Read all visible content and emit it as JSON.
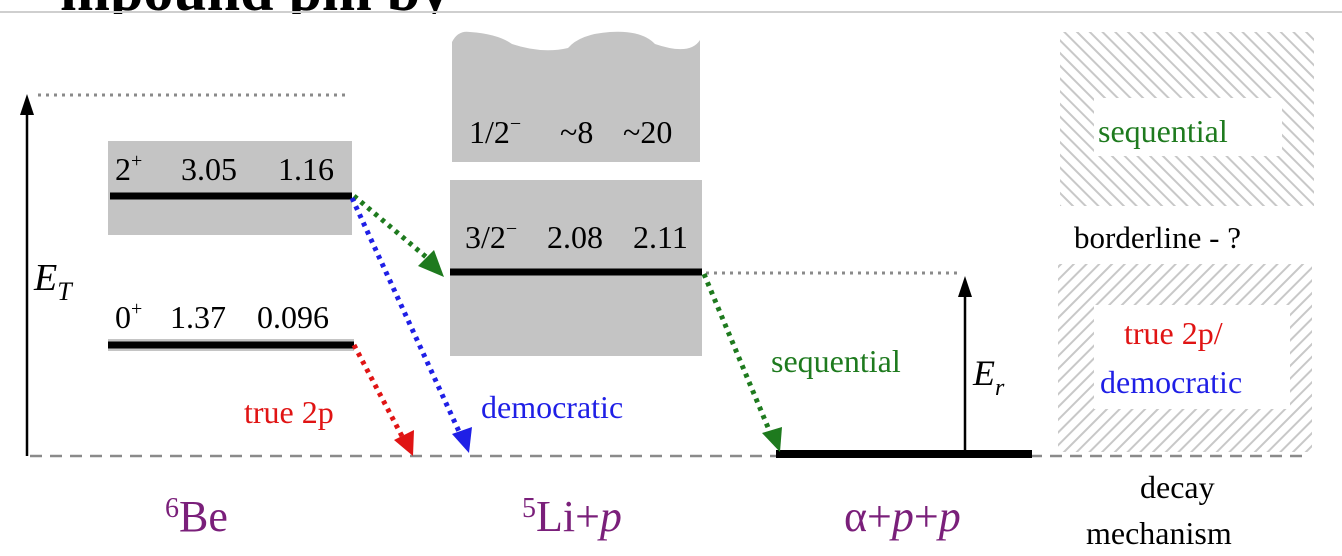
{
  "clipped_header": "mpound pm by",
  "axis": {
    "total_energy_label": "E",
    "total_energy_sub": "T",
    "resonance_energy_label": "E",
    "resonance_energy_sub": "r"
  },
  "be6": {
    "state_2plus": {
      "jp": "2",
      "jp_sup": "+",
      "energy": "3.05",
      "width": "1.16"
    },
    "state_0plus": {
      "jp": "0",
      "jp_sup": "+",
      "energy": "1.37",
      "width": "0.096"
    },
    "label_mass": "6",
    "label_elem": "Be"
  },
  "li5": {
    "state_half": {
      "jp": "1/2",
      "jp_sup": "−",
      "energy": "~8",
      "width": "~20"
    },
    "state_threehalf": {
      "jp": "3/2",
      "jp_sup": "−",
      "energy": "2.08",
      "width": "2.11"
    },
    "label_mass": "5",
    "label_elem": "Li+",
    "label_p": "p"
  },
  "alpha": {
    "label_alpha": "α+",
    "label_p1": "p",
    "label_plus": "+",
    "label_p2": "p"
  },
  "decay_labels": {
    "true2p": "true 2p",
    "democratic": "democratic",
    "sequential": "sequential"
  },
  "legend": {
    "sequential": "sequential",
    "borderline": "borderline - ?",
    "true2p": "true 2p/",
    "democratic": "democratic",
    "decay": "decay",
    "mechanism": "mechanism"
  },
  "colors": {
    "green": "#1e7a1e",
    "blue": "#1f1fe6",
    "red": "#e01414",
    "purple": "#7a1f7a",
    "gray": "#c4c4c4"
  }
}
